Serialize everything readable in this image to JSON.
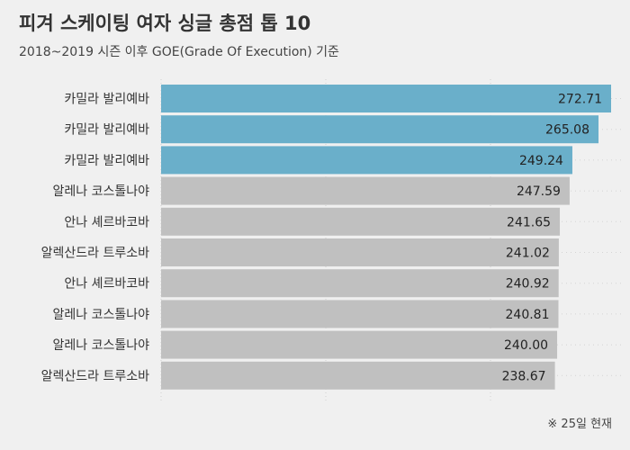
{
  "title": "피겨 스케이팅 여자 싱글 총점 톱 10",
  "subtitle": "2018~2019 시즌 이후 GOE(Grade Of Execution) 기준",
  "footnote": "※ 25일 현재",
  "colors": {
    "background": "#f0f0f0",
    "highlight": "#6aafca",
    "other": "#c0c0c0",
    "text": "#333333"
  },
  "chart_data": {
    "type": "bar",
    "orientation": "horizontal",
    "categories": [
      "카밀라 발리예바",
      "카밀라 발리예바",
      "카밀라 발리예바",
      "알레나 코스톨나야",
      "안나 셰르바코바",
      "알렉산드라 트루소바",
      "안나 셰르바코바",
      "알레나 코스톨나야",
      "알레나 코스톨나야",
      "알렉산드라 트루소바"
    ],
    "values": [
      272.71,
      265.08,
      249.24,
      247.59,
      241.65,
      241.02,
      240.92,
      240.81,
      240.0,
      238.67
    ],
    "value_labels": [
      "272.71",
      "265.08",
      "249.24",
      "247.59",
      "241.65",
      "241.02",
      "240.92",
      "240.81",
      "240.00",
      "238.67"
    ],
    "highlighted": [
      true,
      true,
      true,
      false,
      false,
      false,
      false,
      false,
      false,
      false
    ],
    "xlim": [
      0,
      272.71
    ],
    "grid": true
  }
}
